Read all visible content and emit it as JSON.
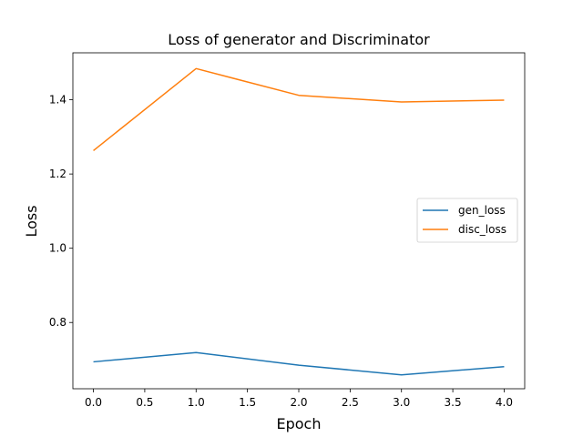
{
  "chart_data": {
    "type": "line",
    "title": "Loss of generator and Discriminator",
    "xlabel": "Epoch",
    "ylabel": "Loss",
    "x": [
      0,
      1,
      2,
      3,
      4
    ],
    "series": [
      {
        "name": "gen_loss",
        "color": "#1f77b4",
        "values": [
          0.694,
          0.719,
          0.685,
          0.659,
          0.681
        ]
      },
      {
        "name": "disc_loss",
        "color": "#ff7f0e",
        "values": [
          1.263,
          1.484,
          1.412,
          1.394,
          1.399
        ]
      }
    ],
    "xlim": [
      -0.2,
      4.2
    ],
    "ylim": [
      0.6215,
      1.5265
    ],
    "xticks": [
      0.0,
      0.5,
      1.0,
      1.5,
      2.0,
      2.5,
      3.0,
      3.5,
      4.0
    ],
    "xtick_labels": [
      "0.0",
      "0.5",
      "1.0",
      "1.5",
      "2.0",
      "2.5",
      "3.0",
      "3.5",
      "4.0"
    ],
    "yticks": [
      0.8,
      1.0,
      1.2,
      1.4
    ],
    "ytick_labels": [
      "0.8",
      "1.0",
      "1.2",
      "1.4"
    ],
    "grid": false,
    "legend": "center-right"
  }
}
